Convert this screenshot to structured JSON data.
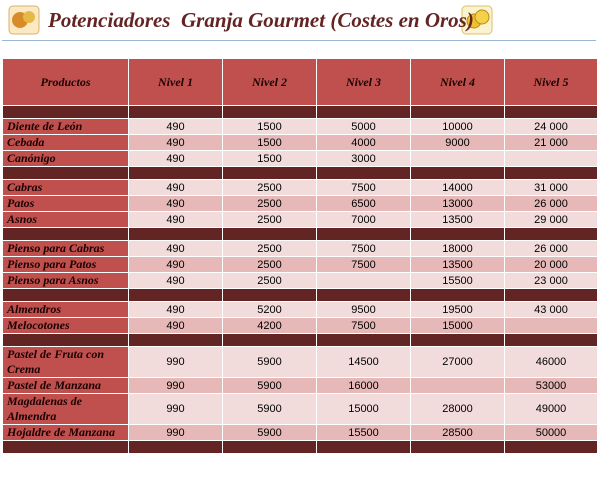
{
  "header": {
    "title": "Potenciadores  Granja Gourmet (Costes en Oros)"
  },
  "table": {
    "columns": [
      "Productos",
      "Nivel 1",
      "Nivel 2",
      "Nivel 3",
      "Nivel 4",
      "Nivel 5"
    ],
    "groups": [
      {
        "rows": [
          [
            "Diente de León",
            "490",
            "1500",
            "5000",
            "10000",
            "24 000"
          ],
          [
            "Cebada",
            "490",
            "1500",
            "4000",
            "9000",
            "21 000"
          ],
          [
            "Canónigo",
            "490",
            "1500",
            "3000",
            null,
            null
          ]
        ]
      },
      {
        "rows": [
          [
            "Cabras",
            "490",
            "2500",
            "7500",
            "14000",
            "31 000"
          ],
          [
            "Patos",
            "490",
            "2500",
            "6500",
            "13000",
            "26 000"
          ],
          [
            "Asnos",
            "490",
            "2500",
            "7000",
            "13500",
            "29 000"
          ]
        ]
      },
      {
        "rows": [
          [
            "Pienso para Cabras",
            "490",
            "2500",
            "7500",
            "18000",
            "26 000"
          ],
          [
            "Pienso para Patos",
            "490",
            "2500",
            "7500",
            "13500",
            "20 000"
          ],
          [
            "Pienso para Asnos",
            "490",
            "2500",
            null,
            "15500",
            "23 000"
          ]
        ]
      },
      {
        "rows": [
          [
            "Almendros",
            "490",
            "5200",
            "9500",
            "19500",
            "43 000"
          ],
          [
            "Melocotones",
            "490",
            "4200",
            "7500",
            "15000",
            null
          ]
        ]
      },
      {
        "rows": [
          [
            "Pastel de Fruta con Crema",
            "990",
            "5900",
            "14500",
            "27000",
            "46000"
          ],
          [
            "Pastel de Manzana",
            "990",
            "5900",
            "16000",
            null,
            "53000"
          ],
          [
            "Magdalenas de Almendra",
            "990",
            "5900",
            "15000",
            "28000",
            "49000"
          ],
          [
            "Hojaldre de Manzana",
            "990",
            "5900",
            "15500",
            "28500",
            "50000"
          ]
        ]
      }
    ]
  }
}
